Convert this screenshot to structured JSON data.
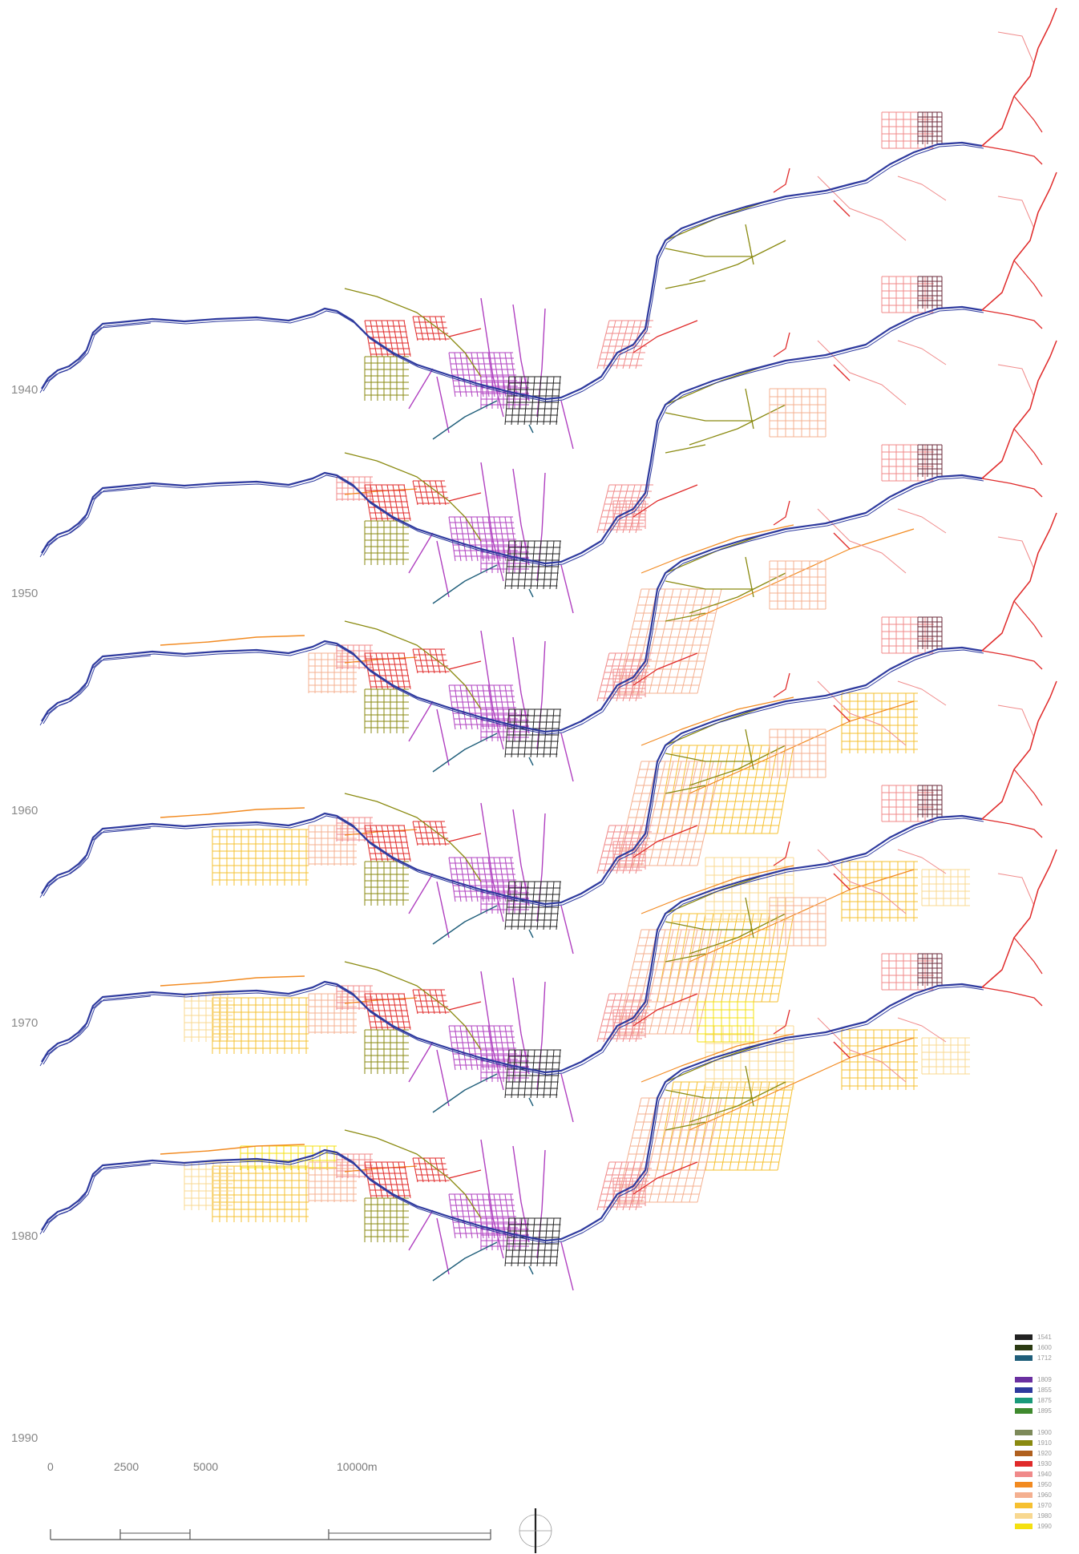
{
  "years": [
    {
      "label": "1940",
      "stage": 0
    },
    {
      "label": "1950",
      "stage": 1
    },
    {
      "label": "1960",
      "stage": 2
    },
    {
      "label": "1970",
      "stage": 3
    },
    {
      "label": "1980",
      "stage": 4
    },
    {
      "label": "1990",
      "stage": 5
    }
  ],
  "legend": {
    "groups": [
      [
        {
          "label": "1541",
          "color": "#222222"
        },
        {
          "label": "1600",
          "color": "#2b3a12"
        },
        {
          "label": "1712",
          "color": "#1f5e7a"
        }
      ],
      [
        {
          "label": "1809",
          "color": "#6a2fa0"
        },
        {
          "label": "1855",
          "color": "#2e3a9e"
        },
        {
          "label": "1875",
          "color": "#1a9a7a"
        },
        {
          "label": "1895",
          "color": "#3f8a2e"
        }
      ],
      [
        {
          "label": "1900",
          "color": "#7d8a5a"
        },
        {
          "label": "1910",
          "color": "#8a8a10"
        },
        {
          "label": "1920",
          "color": "#b0601e"
        },
        {
          "label": "1930",
          "color": "#e02a2a"
        },
        {
          "label": "1940",
          "color": "#f08a8a"
        },
        {
          "label": "1950",
          "color": "#f28a20"
        },
        {
          "label": "1960",
          "color": "#f4b090"
        },
        {
          "label": "1970",
          "color": "#f6c030"
        },
        {
          "label": "1980",
          "color": "#f8d890"
        },
        {
          "label": "1990",
          "color": "#f4e010"
        }
      ]
    ]
  },
  "scale_bar": {
    "labels": [
      "0",
      "2500",
      "5000",
      "10000m"
    ]
  },
  "colors": {
    "river": "#2e3a9e",
    "centre_grid": "#222222",
    "colonial_axes": "#b040c0",
    "old_roads": "#8a8a10",
    "growth_1930": "#e02a2a",
    "growth_1940": "#f08a8a",
    "growth_1950": "#f28a20",
    "growth_1960": "#f4b090",
    "growth_1970": "#f6c030",
    "growth_1980": "#f8d890",
    "growth_1990": "#f4e010"
  }
}
